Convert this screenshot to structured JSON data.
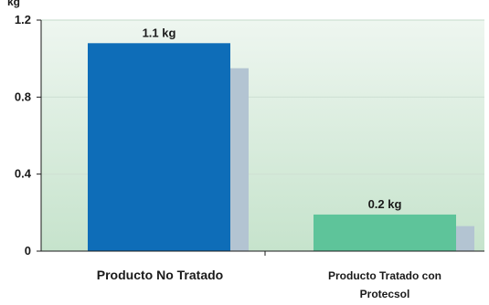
{
  "chart_data": {
    "type": "bar",
    "y_unit": "kg",
    "ylim": [
      0,
      1.2
    ],
    "y_ticks": [
      "0",
      "0.4",
      "0.8",
      "1.2"
    ],
    "y_tick_values": [
      0,
      0.4,
      0.8,
      1.2
    ],
    "grid": true,
    "categories": [
      "Producto No Tratado",
      "Producto Tratado con Protecsol"
    ],
    "category_lines": [
      [
        "Producto No Tratado"
      ],
      [
        "Producto Tratado con",
        "Protecsol"
      ]
    ],
    "values": [
      1.08,
      0.19
    ],
    "shadow_values": [
      0.95,
      0.13
    ],
    "data_labels": [
      "1.1 kg",
      "0.2 kg"
    ],
    "colors": {
      "bar_1": "#0e6db8",
      "bar_2": "#5ec49a",
      "shadow": "#b3c4d2",
      "grid": "#cfe1d4",
      "axis": "#1a1a1a",
      "plot_top": "#eef6f0",
      "plot_bottom": "#c6e3cc"
    }
  }
}
